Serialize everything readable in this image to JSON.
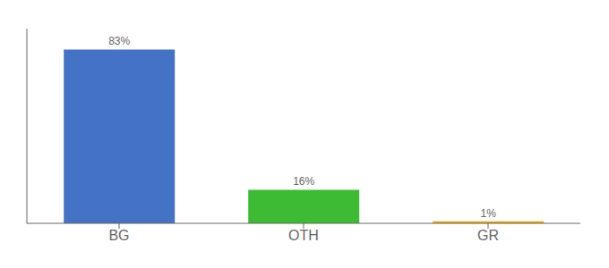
{
  "chart_data": {
    "type": "bar",
    "categories": [
      "BG",
      "OTH",
      "GR"
    ],
    "values": [
      83,
      16,
      1
    ],
    "value_labels": [
      "83%",
      "16%",
      "1%"
    ],
    "colors": [
      "#4472c4",
      "#3dbb35",
      "#f0a800"
    ],
    "ylim": [
      0,
      93
    ],
    "data_labels": true,
    "tick_labels": "x",
    "grid": false
  }
}
